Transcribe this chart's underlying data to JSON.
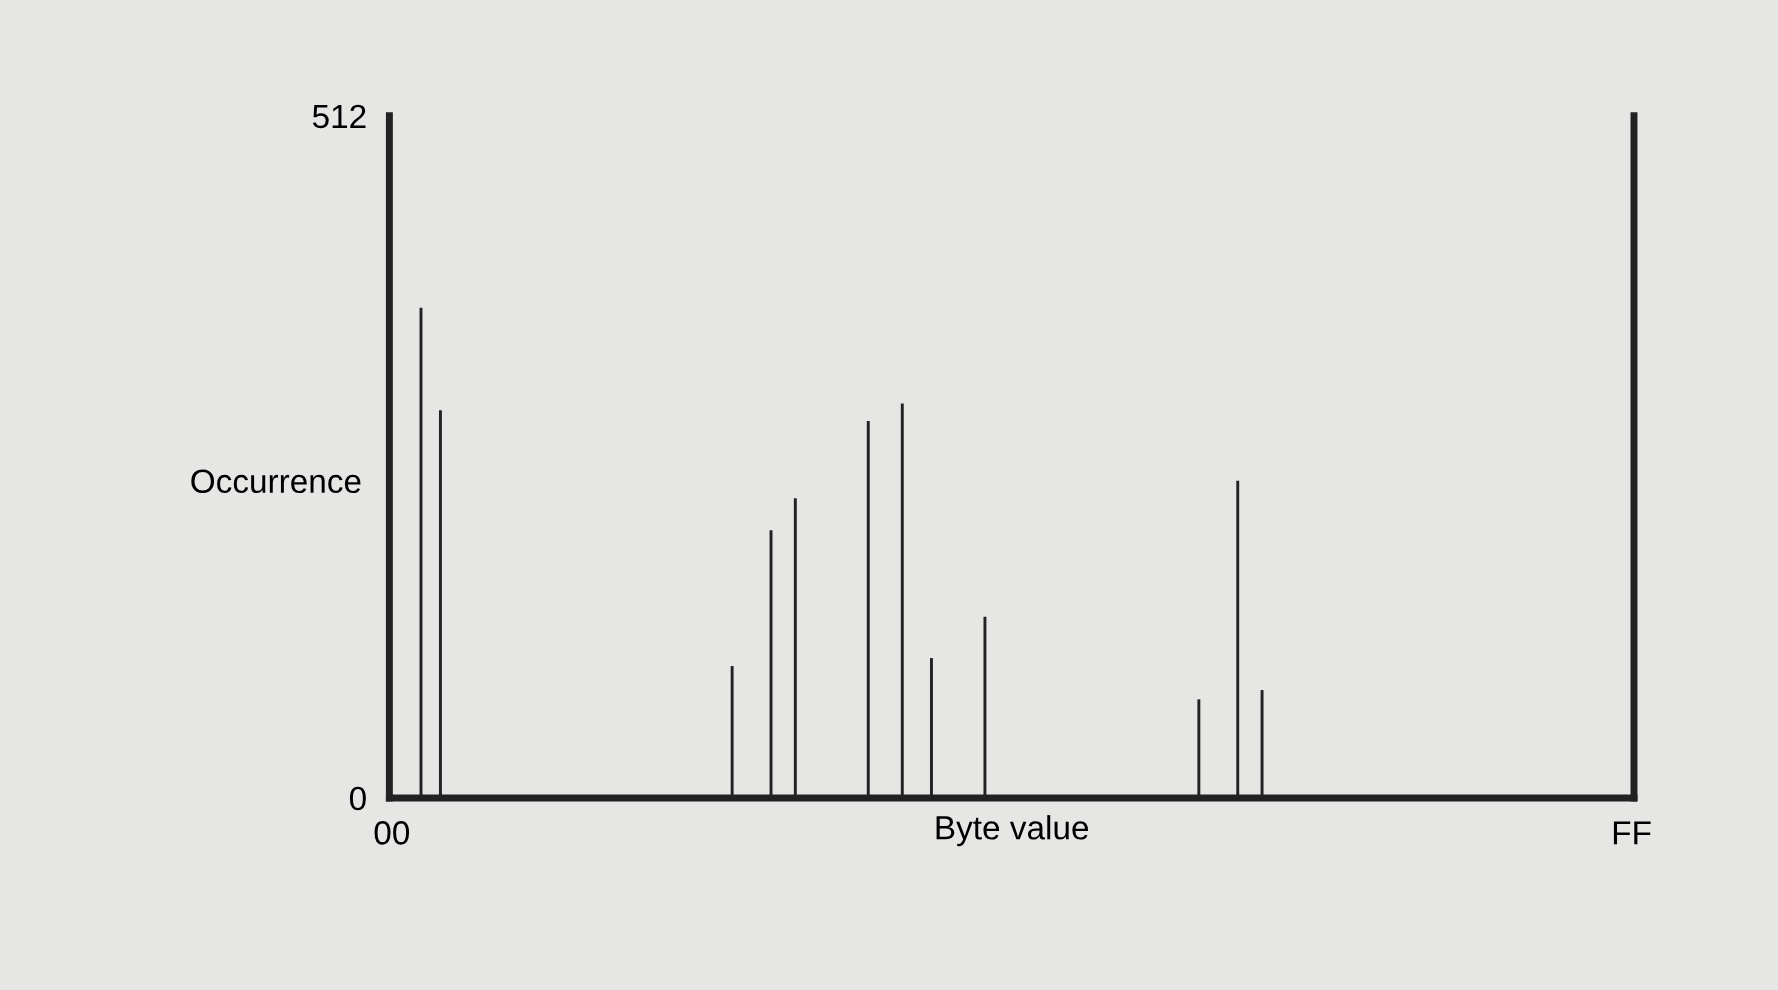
{
  "chart_data": {
    "type": "bar",
    "categories": [
      "00",
      null,
      null,
      null,
      null,
      null,
      null,
      null,
      null,
      null,
      null,
      null,
      null,
      null,
      null,
      null,
      null,
      null,
      null,
      null,
      null,
      null,
      null,
      null,
      null,
      null,
      null,
      null,
      null,
      null,
      null,
      null,
      null,
      null,
      null,
      null,
      null,
      null,
      null,
      null,
      null,
      null,
      null,
      null,
      null,
      null,
      null,
      null,
      null,
      null,
      null,
      null,
      null,
      null,
      null,
      null,
      null,
      null,
      null,
      null,
      null,
      null,
      null,
      null,
      null,
      null,
      null,
      null,
      null,
      null,
      null,
      null,
      null,
      null,
      null,
      null,
      null,
      null,
      null,
      null,
      null,
      null,
      null,
      null,
      null,
      null,
      null,
      null,
      null,
      null,
      null,
      null,
      null,
      null,
      null,
      null,
      null,
      null,
      null,
      null,
      null,
      null,
      null,
      null,
      null,
      null,
      null,
      null,
      null,
      null,
      null,
      null,
      null,
      null,
      null,
      null,
      null,
      null,
      null,
      null,
      null,
      null,
      null,
      null,
      null,
      null,
      null,
      null,
      null,
      null,
      null,
      null,
      null,
      null,
      null,
      null,
      null,
      null,
      null,
      null,
      null,
      null,
      null,
      null,
      null,
      null,
      null,
      null,
      null,
      null,
      null,
      null,
      null,
      null,
      null,
      null,
      null,
      null,
      null,
      null,
      null,
      null,
      null,
      null,
      null,
      null,
      null,
      null,
      null,
      null,
      null,
      null,
      null,
      null,
      null,
      null,
      null,
      null,
      null,
      null,
      null,
      null,
      null,
      null,
      null,
      null,
      null,
      null,
      null,
      null,
      null,
      null,
      null,
      null,
      null,
      null,
      null,
      null,
      null,
      null,
      null,
      null,
      null,
      null,
      null,
      null,
      null,
      null,
      null,
      null,
      null,
      null,
      null,
      null,
      null,
      null,
      null,
      null,
      null,
      null,
      null,
      null,
      null,
      null,
      null,
      null,
      null,
      null,
      null,
      null,
      null,
      null,
      null,
      null,
      null,
      null,
      null,
      null,
      null,
      null,
      null,
      null,
      null,
      null,
      null,
      null,
      null,
      null,
      null,
      null,
      null,
      null,
      null,
      null,
      null,
      "FF"
    ],
    "values": [
      0,
      0,
      0,
      0,
      0,
      0,
      368,
      0,
      0,
      0,
      291,
      0,
      0,
      0,
      0,
      0,
      0,
      0,
      0,
      0,
      0,
      0,
      0,
      0,
      0,
      0,
      0,
      0,
      0,
      0,
      0,
      0,
      0,
      0,
      0,
      0,
      0,
      0,
      0,
      0,
      0,
      0,
      0,
      0,
      0,
      0,
      0,
      0,
      0,
      0,
      0,
      0,
      0,
      0,
      0,
      0,
      0,
      0,
      0,
      0,
      0,
      0,
      0,
      0,
      0,
      0,
      0,
      0,
      0,
      0,
      99,
      0,
      0,
      0,
      0,
      0,
      0,
      0,
      201,
      0,
      0,
      0,
      0,
      225,
      0,
      0,
      0,
      0,
      0,
      0,
      0,
      0,
      0,
      0,
      0,
      0,
      0,
      0,
      283,
      0,
      0,
      0,
      0,
      0,
      0,
      296,
      0,
      0,
      0,
      0,
      0,
      105,
      0,
      0,
      0,
      0,
      0,
      0,
      0,
      0,
      0,
      0,
      136,
      0,
      0,
      0,
      0,
      0,
      0,
      0,
      0,
      0,
      0,
      0,
      0,
      0,
      0,
      0,
      0,
      0,
      0,
      0,
      0,
      0,
      0,
      0,
      0,
      0,
      0,
      0,
      0,
      0,
      0,
      0,
      0,
      0,
      0,
      0,
      0,
      0,
      0,
      0,
      0,
      0,
      0,
      0,
      74,
      0,
      0,
      0,
      0,
      0,
      0,
      0,
      238,
      0,
      0,
      0,
      0,
      81,
      0,
      0,
      0,
      0,
      0,
      0,
      0,
      0,
      0,
      0,
      0,
      0,
      0,
      0,
      0,
      0,
      0,
      0,
      0,
      0,
      0,
      0,
      0,
      0,
      0,
      0,
      0,
      0,
      0,
      0,
      0,
      0,
      0,
      0,
      0,
      0,
      0,
      0,
      0,
      0,
      0,
      0,
      0,
      0,
      0,
      0,
      0,
      0,
      0,
      0,
      0,
      0,
      0,
      0,
      0,
      0,
      0,
      0,
      0,
      0,
      0,
      0,
      0,
      0,
      0,
      0,
      0,
      0,
      0,
      0,
      0,
      0,
      0,
      0,
      0,
      0
    ],
    "color": "#222222",
    "xlabel": "Byte value",
    "ylabel": "Occurrence",
    "ylim": [
      0,
      512
    ],
    "yticks": [
      0,
      512
    ],
    "grid": false,
    "legend": false
  }
}
